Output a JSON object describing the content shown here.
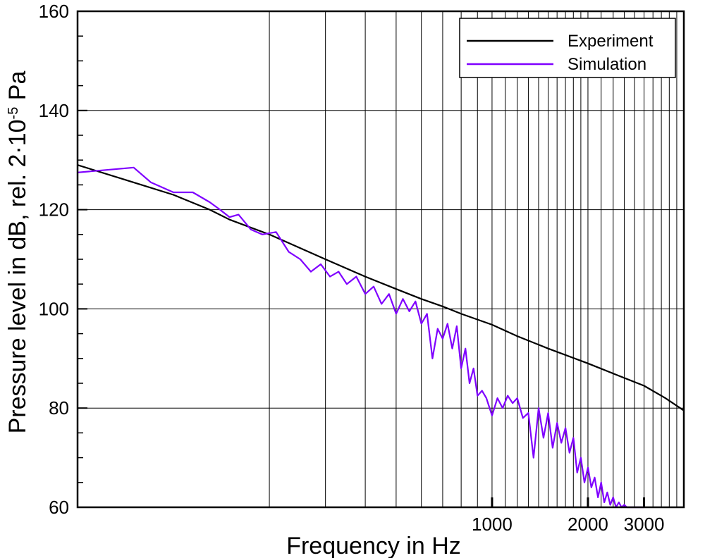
{
  "chart_data": {
    "type": "line",
    "title": "",
    "xlabel": "Frequency in Hz",
    "ylabel_main": "Pressure level in dB, rel. 2·10",
    "ylabel_exponent": "-5",
    "ylabel_unit": " Pa",
    "xscale": "log",
    "xlim": [
      50,
      4000
    ],
    "ylim": [
      60,
      160
    ],
    "grid": true,
    "legend_position": "top-right",
    "yticks": [
      60,
      80,
      100,
      120,
      140,
      160
    ],
    "ytick_labels": [
      "60",
      "80",
      "100",
      "120",
      "140",
      "160"
    ],
    "yticks_minor": [
      65,
      70,
      75,
      85,
      90,
      95,
      105,
      110,
      115,
      125,
      130,
      135,
      145,
      150,
      155
    ],
    "xtick_labels": [
      {
        "x": 1000,
        "label": "1000"
      },
      {
        "x": 2000,
        "label": "2000"
      },
      {
        "x": 3000,
        "label": "3000"
      }
    ],
    "xgrid": [
      200,
      300,
      400,
      500,
      600,
      700,
      800,
      900,
      1000,
      1100,
      1200,
      1300,
      1400,
      1500,
      1600,
      1700,
      1800,
      1900,
      2000,
      2200,
      2400,
      2600,
      2800,
      3000,
      3200,
      3400,
      3600,
      3800
    ],
    "series": [
      {
        "name": "Experiment",
        "color": "#000000",
        "x": [
          50,
          75,
          100,
          130,
          150,
          200,
          300,
          400,
          500,
          600,
          700,
          800,
          1000,
          1200,
          1500,
          2000,
          2500,
          3000,
          3500,
          4000
        ],
        "y": [
          129,
          125.5,
          123,
          120,
          118,
          115,
          110,
          106.5,
          104,
          102,
          100.5,
          99,
          96.8,
          94.5,
          92,
          89,
          86.5,
          84.5,
          82,
          79.5
        ]
      },
      {
        "name": "Simulation",
        "color": "#7f00ff",
        "x": [
          50,
          75,
          85,
          100,
          115,
          130,
          140,
          150,
          160,
          175,
          190,
          210,
          230,
          250,
          270,
          290,
          310,
          330,
          350,
          375,
          400,
          425,
          450,
          475,
          500,
          525,
          550,
          575,
          600,
          625,
          650,
          675,
          700,
          725,
          750,
          775,
          800,
          825,
          850,
          875,
          900,
          930,
          960,
          1000,
          1040,
          1080,
          1120,
          1160,
          1200,
          1250,
          1300,
          1350,
          1400,
          1450,
          1500,
          1550,
          1600,
          1650,
          1700,
          1750,
          1800,
          1850,
          1900,
          1950,
          2000,
          2050,
          2100,
          2150,
          2200,
          2250,
          2300,
          2350,
          2400,
          2450,
          2500,
          2550,
          2600,
          2650,
          2700,
          2750,
          2800,
          2850,
          2900,
          2950,
          3000
        ],
        "y": [
          127.5,
          128.5,
          125.5,
          123.5,
          123.5,
          121.5,
          120,
          118.5,
          119,
          116,
          115,
          115.5,
          111.5,
          110,
          107.5,
          109,
          106.5,
          107.5,
          105,
          106.5,
          103,
          104.5,
          101,
          103,
          99,
          102,
          99.5,
          101.5,
          97,
          99,
          90,
          96,
          94,
          97,
          92,
          96.5,
          88,
          92,
          85,
          88,
          82.5,
          83.5,
          82,
          78.5,
          82,
          80,
          82.5,
          81,
          82,
          78,
          79,
          70,
          80,
          74,
          79,
          72,
          77,
          73,
          76,
          71,
          74,
          67,
          70,
          65,
          68,
          64,
          66,
          62,
          65,
          61,
          63,
          60.5,
          62,
          60,
          61,
          60,
          60.5,
          60,
          60,
          60,
          60,
          60,
          60,
          60,
          60
        ]
      }
    ]
  }
}
